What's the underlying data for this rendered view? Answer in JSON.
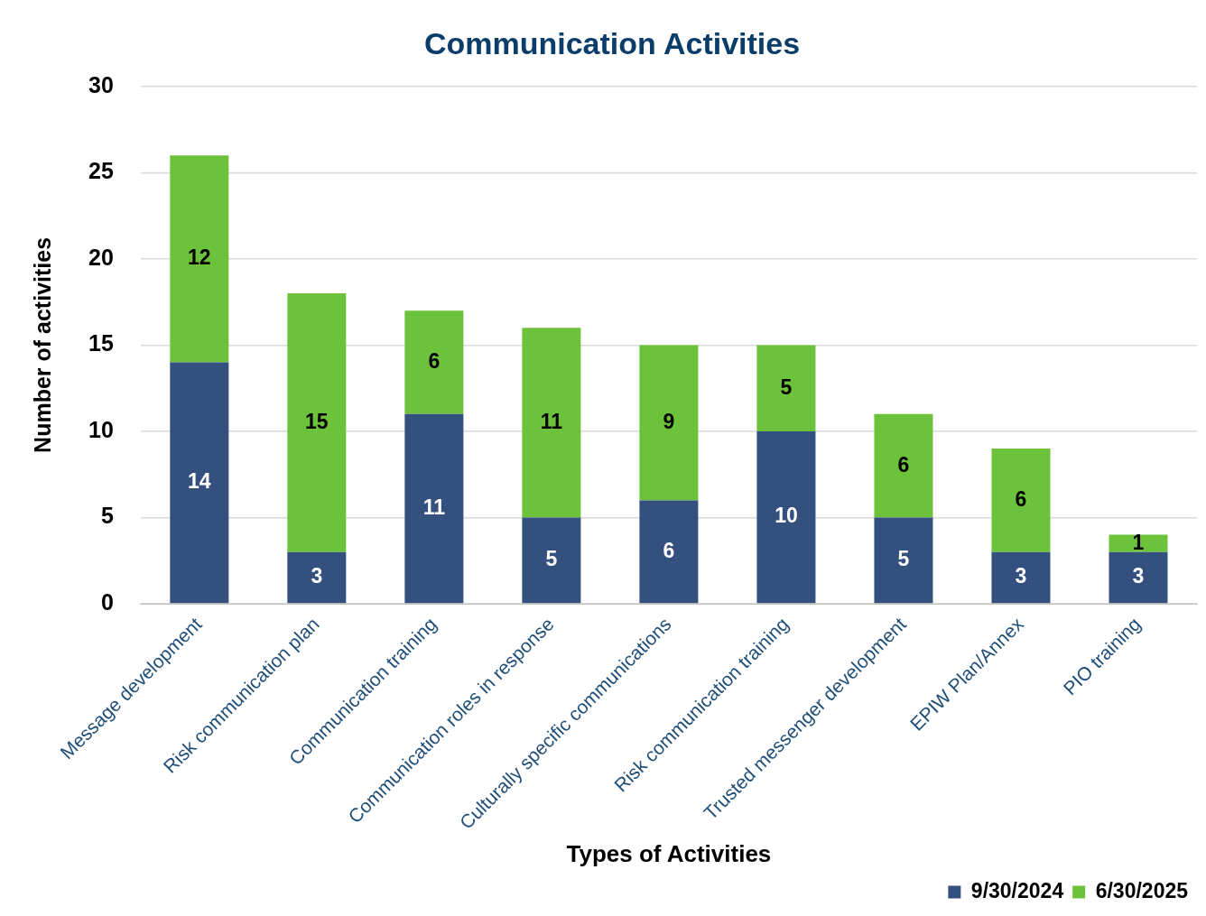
{
  "chart_data": {
    "type": "bar",
    "title": "Communication Activities",
    "xlabel": "Types of Activities",
    "ylabel": "Number of activities",
    "categories": [
      "Message development",
      "Risk communication plan",
      "Communication training",
      "Communication roles in response",
      "Culturally specific communications",
      "Risk communication training",
      "Trusted messenger development",
      "EPIW Plan/Annex",
      "PIO training"
    ],
    "series": [
      {
        "name": "9/30/2024",
        "color": "#34507e",
        "values": [
          14,
          3,
          11,
          5,
          6,
          10,
          5,
          3,
          3
        ]
      },
      {
        "name": "6/30/2025",
        "color": "#6cc23a",
        "values": [
          12,
          15,
          6,
          11,
          9,
          5,
          6,
          6,
          1
        ]
      }
    ],
    "stacked": true,
    "ylim": [
      0,
      30
    ],
    "yticks": [
      0,
      5,
      10,
      15,
      20,
      25,
      30
    ],
    "grid": "y",
    "legend": "bottom right",
    "data_labels": true
  }
}
